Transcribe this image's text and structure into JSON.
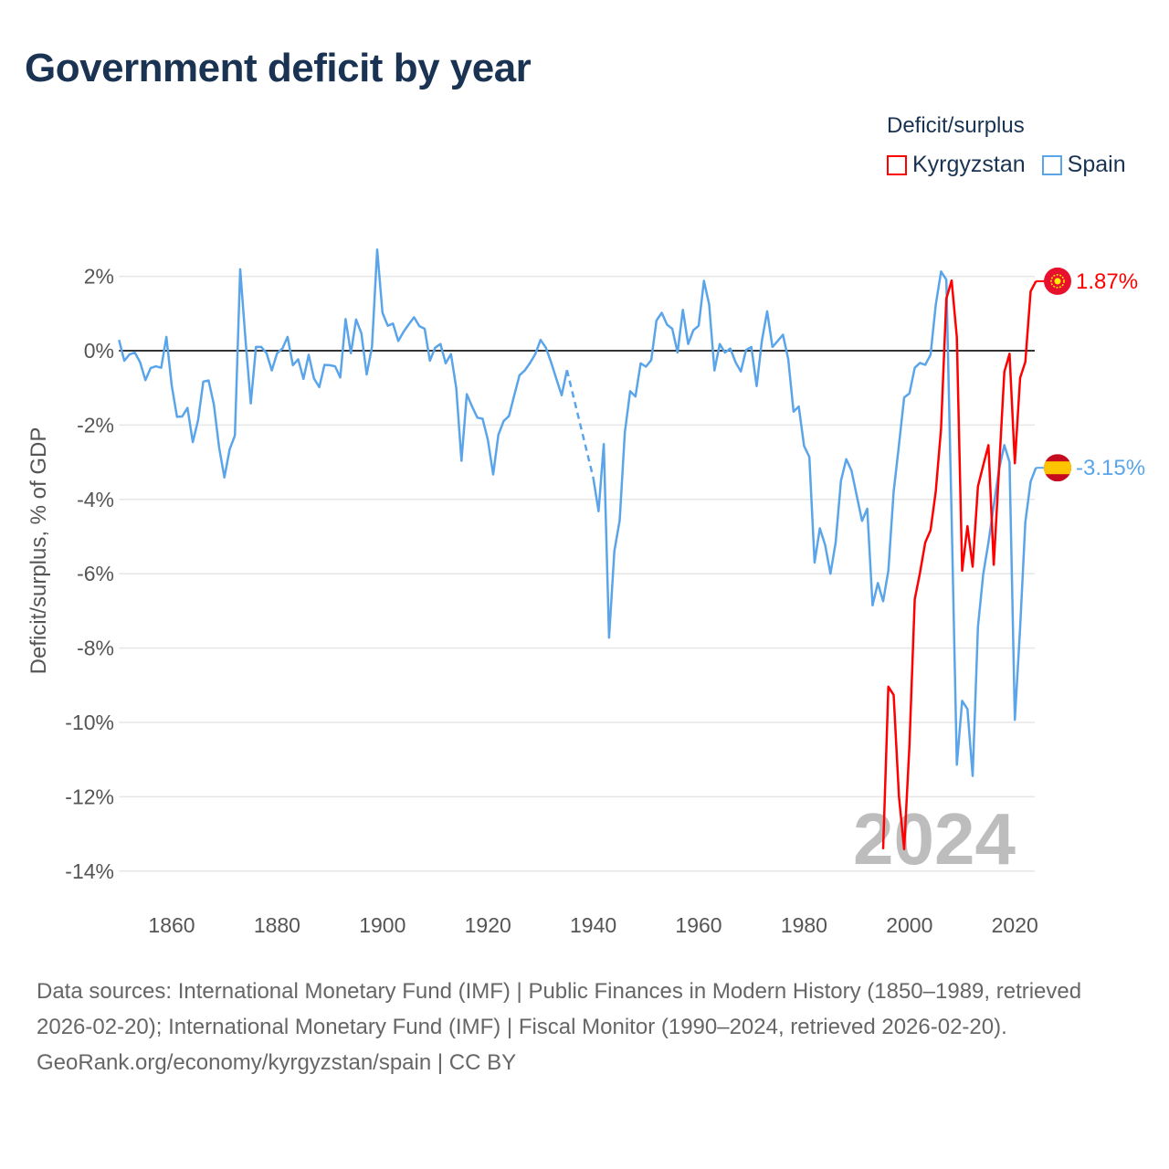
{
  "title": "Government deficit by year",
  "legend": {
    "title": "Deficit/surplus",
    "items": [
      {
        "label": "Kyrgyzstan",
        "color": "#ff0000"
      },
      {
        "label": "Spain",
        "color": "#5aa5ea"
      }
    ]
  },
  "footer": {
    "sources": "Data sources: International Monetary Fund (IMF) | Public Finances in Modern History (1850–1989, retrieved 2026-02-20); International Monetary Fund (IMF) | Fiscal Monitor (1990–2024, retrieved 2026-02-20).",
    "credit": "GeoRank.org/economy/kyrgyzstan/spain | CC BY"
  },
  "chart_data": {
    "type": "line",
    "title": "Government deficit by year",
    "xlabel": "",
    "ylabel": "Deficit/surplus, % of GDP",
    "xlim": [
      1850,
      2024
    ],
    "ylim": [
      -14,
      2.7
    ],
    "xticks": [
      1860,
      1880,
      1900,
      1920,
      1940,
      1960,
      1980,
      2000,
      2020
    ],
    "yticks": [
      2,
      0,
      -2,
      -4,
      -6,
      -8,
      -10,
      -12,
      -14
    ],
    "ytick_labels": [
      "2%",
      "0%",
      "-2%",
      "-4%",
      "-6%",
      "-8%",
      "-10%",
      "-12%",
      "-14%"
    ],
    "grid": true,
    "legend_position": "top-right",
    "year_watermark": "2024",
    "series": [
      {
        "name": "Kyrgyzstan",
        "color": "#ff0000",
        "start_year": 1995,
        "end_label": "1.87%",
        "values": [
          -13.41,
          -9.04,
          -9.26,
          -11.99,
          -13.41,
          -10.62,
          -6.69,
          -5.98,
          -5.16,
          -4.83,
          -3.79,
          -2.1,
          1.4,
          1.89,
          0.36,
          -5.92,
          -4.72,
          -5.81,
          -3.65,
          -3.08,
          -2.54,
          -5.76,
          -3.19,
          -0.57,
          -0.08,
          -3.03,
          -0.73,
          -0.3,
          1.6,
          1.87
        ]
      },
      {
        "name": "Spain",
        "color": "#5aa5ea",
        "start_year": 1850,
        "end_label": "-3.15%",
        "values": [
          0.29,
          -0.27,
          -0.1,
          -0.05,
          -0.31,
          -0.79,
          -0.47,
          -0.42,
          -0.46,
          0.37,
          -0.93,
          -1.78,
          -1.77,
          -1.54,
          -2.46,
          -1.87,
          -0.83,
          -0.8,
          -1.45,
          -2.6,
          -3.41,
          -2.65,
          -2.28,
          2.19,
          0.3,
          -1.42,
          0.1,
          0.1,
          -0.07,
          -0.53,
          -0.07,
          0.06,
          0.37,
          -0.39,
          -0.23,
          -0.76,
          -0.11,
          -0.75,
          -0.98,
          -0.38,
          -0.39,
          -0.42,
          -0.72,
          0.85,
          -0.07,
          0.84,
          0.47,
          -0.64,
          0.1,
          2.72,
          1.02,
          0.67,
          0.73,
          0.26,
          0.51,
          0.71,
          0.9,
          0.66,
          0.59,
          -0.27,
          0.08,
          0.18,
          -0.34,
          -0.09,
          -1.01,
          -2.96,
          -1.17,
          -1.5,
          -1.8,
          -1.83,
          -2.4,
          -3.33,
          -2.26,
          -1.89,
          -1.76,
          -1.21,
          -0.66,
          -0.53,
          -0.33,
          -0.09,
          0.29,
          0.08,
          -0.31,
          -0.76,
          -1.2,
          -0.52,
          null,
          null,
          null,
          null,
          -3.42,
          -4.32,
          -2.51,
          -7.72,
          -5.39,
          -4.57,
          -2.19,
          -1.09,
          -1.23,
          -0.34,
          -0.43,
          -0.25,
          0.81,
          1.02,
          0.7,
          0.59,
          -0.05,
          1.1,
          0.18,
          0.55,
          0.67,
          1.88,
          1.24,
          -0.53,
          0.18,
          -0.05,
          0.06,
          -0.31,
          -0.56,
          0.02,
          0.1,
          -0.95,
          0.26,
          1.06,
          0.1,
          0.26,
          0.43,
          -0.23,
          -1.64,
          -1.5,
          -2.56,
          -2.86,
          -5.7,
          -4.78,
          -5.23,
          -6.0,
          -5.16,
          -3.5,
          -2.92,
          -3.22,
          -3.9,
          -4.58,
          -4.25,
          -6.85,
          -6.25,
          -6.74,
          -5.92,
          -3.79,
          -2.54,
          -1.26,
          -1.15,
          -0.46,
          -0.33,
          -0.38,
          -0.11,
          1.23,
          2.13,
          1.91,
          -4.5,
          -11.14,
          -9.42,
          -9.64,
          -11.44,
          -7.43,
          -6.01,
          -5.16,
          -4.17,
          -3.19,
          -2.54,
          -3.0,
          -9.93,
          -7.45,
          -4.61,
          -3.52,
          -3.15
        ]
      }
    ]
  }
}
